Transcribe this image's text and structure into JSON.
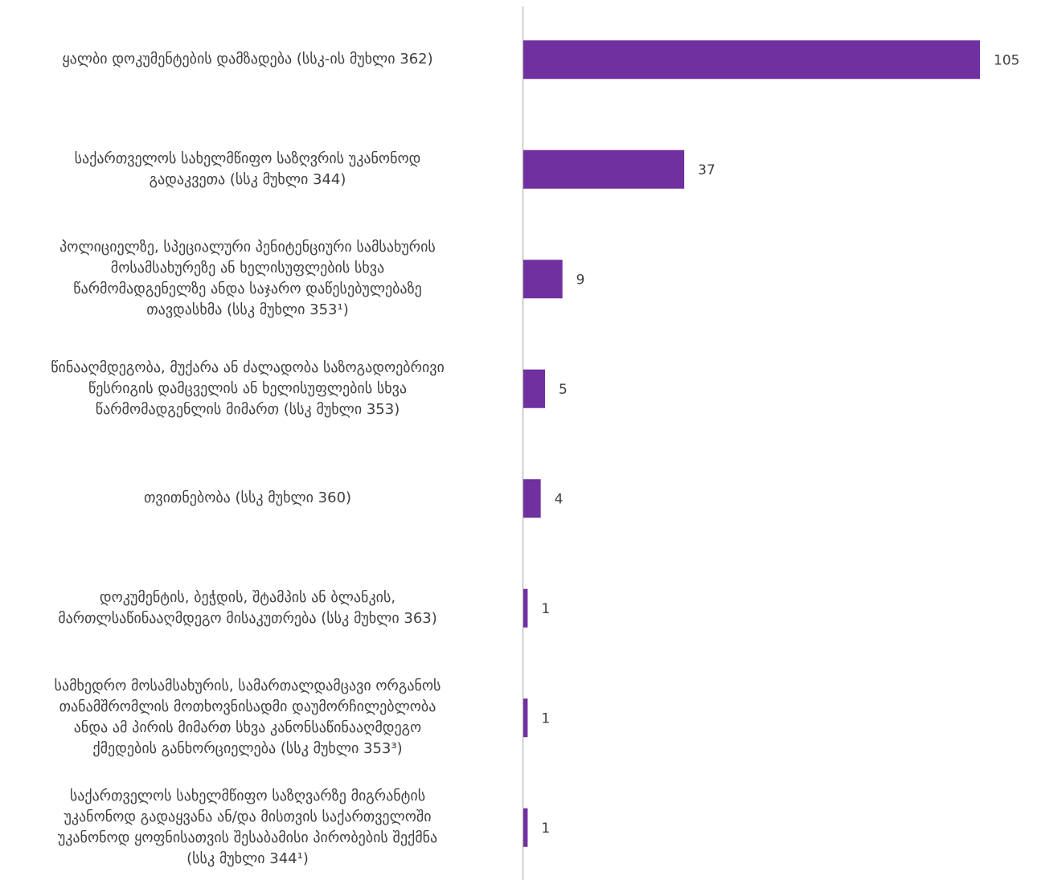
{
  "chart_data": {
    "type": "bar",
    "orientation": "horizontal",
    "bar_color": "#7030A0",
    "axis_color": "#BFBFBF",
    "grid": false,
    "legend": "none",
    "xlim": [
      0,
      105
    ],
    "categories": [
      "ყალბი დოკუმენტების დამზადება (სსკ-ის მუხლი 362)",
      "საქართველოს სახელმწიფო საზღვრის უკანონოდ\nგადაკვეთა (სსკ მუხლი 344)",
      "პოლიციელზე, სპეციალური პენიტენციური სამსახურის\nმოსამსახურეზე ან ხელისუფლების სხვა\nწარმომადგენელზე ანდა საჯარო დაწესებულებაზე\nთავდასხმა  (სსკ მუხლი 353¹)",
      "წინააღმდეგობა, მუქარა ან ძალადობა საზოგადოებრივი\nწესრიგის დამცველის ან ხელისუფლების სხვა\nწარმომადგენლის მიმართ (სსკ მუხლი 353)",
      "თვითნებობა (სსკ მუხლი 360)",
      "დოკუმენტის, ბეჭდის, შტამპის ან ბლანკის,\nმართლსაწინააღმდეგო მისაკუთრება (სსკ მუხლი 363)",
      "სამხედრო მოსამსახურის, სამართალდამცავი ორგანოს\nთანამშრომლის მოთხოვნისადმი დაუმორჩილებლობა\nანდა ამ პირის მიმართ სხვა კანონსაწინააღმდეგო\nქმედების განხორციელება (სსკ მუხლი 353³)",
      "საქართველოს სახელმწიფო საზღვარზე მიგრანტის\nუკანონოდ გადაყვანა ან/და მისთვის საქართველოში\nუკანონოდ ყოფნისათვის შესაბამისი პირობების შექმნა\n(სსკ მუხლი 344¹)"
    ],
    "values": [
      105,
      37,
      9,
      5,
      4,
      1,
      1,
      1
    ],
    "data_labels": [
      "105",
      "37",
      "9",
      "5",
      "4",
      "1",
      "1",
      "1"
    ]
  }
}
